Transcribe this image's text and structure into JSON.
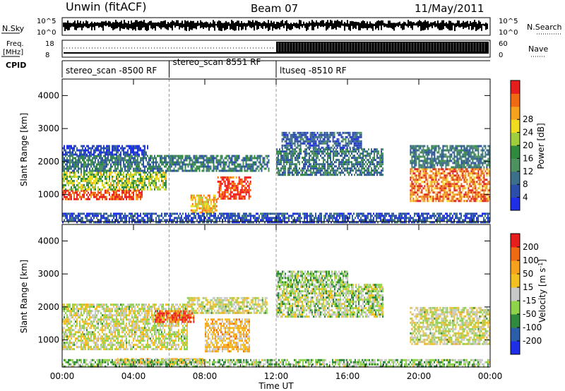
{
  "header": {
    "site": "Unwin (fitACF)",
    "beam": "Beam 07",
    "date": "11/May/2011"
  },
  "top_panels": {
    "nsky_label": "N.Sky",
    "nsky_ticks": [
      "10^5",
      "10^0"
    ],
    "nsearch_label": "N.Search",
    "freq_label_1": "Freq.",
    "freq_label_2": "[MHz]",
    "freq_ticks": [
      "18",
      "8"
    ],
    "nave_label": "Nave",
    "nave_ticks": [
      "60",
      "0"
    ],
    "cpid_label": "CPID",
    "cpid_segments": [
      {
        "name": "stereo_scan -8500 RF",
        "start_hour": 0,
        "end_hour": 6
      },
      {
        "name": "stereo_scan 8551 RF",
        "start_hour": 6,
        "end_hour": 12
      },
      {
        "name": "ltuseq -8510 RF",
        "start_hour": 12,
        "end_hour": 24
      }
    ]
  },
  "chart_data": [
    {
      "type": "heatmap",
      "title": "Power",
      "ylabel": "Slant Range [km]",
      "ylim": [
        180,
        4500
      ],
      "yticks": [
        1000,
        2000,
        3000,
        4000
      ],
      "xlim_hours": [
        0,
        24
      ],
      "colorbar": {
        "label": "Power [dB]",
        "ticks": [
          "4",
          "8",
          "12",
          "16",
          "20",
          "24",
          "28"
        ],
        "colors": [
          "#1f2fe8",
          "#2b4fa8",
          "#3b6f8a",
          "#4e9160",
          "#2f8a3e",
          "#9fcf3f",
          "#f2dc20",
          "#f7a21c",
          "#f06a14",
          "#e61e1e"
        ]
      },
      "regions": [
        {
          "hour_start": 0.0,
          "hour_end": 4.5,
          "range_start": 850,
          "range_end": 1150,
          "level": 0.92
        },
        {
          "hour_start": 0.0,
          "hour_end": 5.8,
          "range_start": 1150,
          "range_end": 1700,
          "level": 0.55
        },
        {
          "hour_start": 0.0,
          "hour_end": 6.2,
          "range_start": 1700,
          "range_end": 2200,
          "level": 0.3
        },
        {
          "hour_start": 0.0,
          "hour_end": 4.8,
          "range_start": 2200,
          "range_end": 2500,
          "level": 0.12
        },
        {
          "hour_start": 8.7,
          "hour_end": 10.6,
          "range_start": 850,
          "range_end": 1550,
          "level": 0.95
        },
        {
          "hour_start": 7.2,
          "hour_end": 8.7,
          "range_start": 450,
          "range_end": 1000,
          "level": 0.7
        },
        {
          "hour_start": 6.0,
          "hour_end": 11.6,
          "range_start": 1700,
          "range_end": 2200,
          "level": 0.3
        },
        {
          "hour_start": 12.0,
          "hour_end": 18.0,
          "range_start": 1600,
          "range_end": 2400,
          "level": 0.28
        },
        {
          "hour_start": 12.3,
          "hour_end": 16.8,
          "range_start": 2400,
          "range_end": 2900,
          "level": 0.18
        },
        {
          "hour_start": 19.5,
          "hour_end": 24.0,
          "range_start": 800,
          "range_end": 1800,
          "level": 0.82
        },
        {
          "hour_start": 19.5,
          "hour_end": 24.0,
          "range_start": 1800,
          "range_end": 2500,
          "level": 0.3
        },
        {
          "hour_start": 0.0,
          "hour_end": 24.0,
          "range_start": 180,
          "range_end": 450,
          "level": 0.15
        }
      ]
    },
    {
      "type": "heatmap",
      "title": "Velocity",
      "ylabel": "Slant Range [km]",
      "ylim": [
        180,
        4500
      ],
      "yticks": [
        1000,
        2000,
        3000,
        4000
      ],
      "xlim_hours": [
        0,
        24
      ],
      "colorbar": {
        "label": "Velocity [m s^-1]",
        "ticks": [
          "200",
          "100",
          "50",
          "15",
          "-15",
          "-50",
          "-100",
          "-200"
        ],
        "colors": [
          "#1f2fe8",
          "#2b5ea8",
          "#2f8a3e",
          "#8ed34a",
          "#c8c8c8",
          "#f2c020",
          "#f7a21c",
          "#f06a14",
          "#e61e1e"
        ]
      },
      "regions": [
        {
          "hour_start": 0.0,
          "hour_end": 7.0,
          "range_start": 700,
          "range_end": 2100,
          "level": 0.5
        },
        {
          "hour_start": 5.2,
          "hour_end": 7.4,
          "range_start": 1550,
          "range_end": 1900,
          "level": 0.9
        },
        {
          "hour_start": 8.0,
          "hour_end": 10.5,
          "range_start": 650,
          "range_end": 1650,
          "level": 0.63
        },
        {
          "hour_start": 3.0,
          "hour_end": 8.0,
          "range_start": 280,
          "range_end": 450,
          "level": 0.63
        },
        {
          "hour_start": 7.0,
          "hour_end": 11.5,
          "range_start": 1850,
          "range_end": 2300,
          "level": 0.5
        },
        {
          "hour_start": 12.0,
          "hour_end": 18.0,
          "range_start": 1700,
          "range_end": 2700,
          "level": 0.45
        },
        {
          "hour_start": 12.0,
          "hour_end": 16.0,
          "range_start": 2600,
          "range_end": 3100,
          "level": 0.4
        },
        {
          "hour_start": 19.5,
          "hour_end": 24.0,
          "range_start": 900,
          "range_end": 2000,
          "level": 0.5
        },
        {
          "hour_start": 0.0,
          "hour_end": 24.0,
          "range_start": 180,
          "range_end": 420,
          "level": 0.4
        }
      ]
    }
  ],
  "x_axis": {
    "tick_labels": [
      "00:00",
      "04:00",
      "08:00",
      "12:00",
      "16:00",
      "20:00",
      "00:00"
    ],
    "label": "Time UT"
  },
  "y_tick_labels": [
    "1000",
    "2000",
    "3000",
    "4000"
  ]
}
